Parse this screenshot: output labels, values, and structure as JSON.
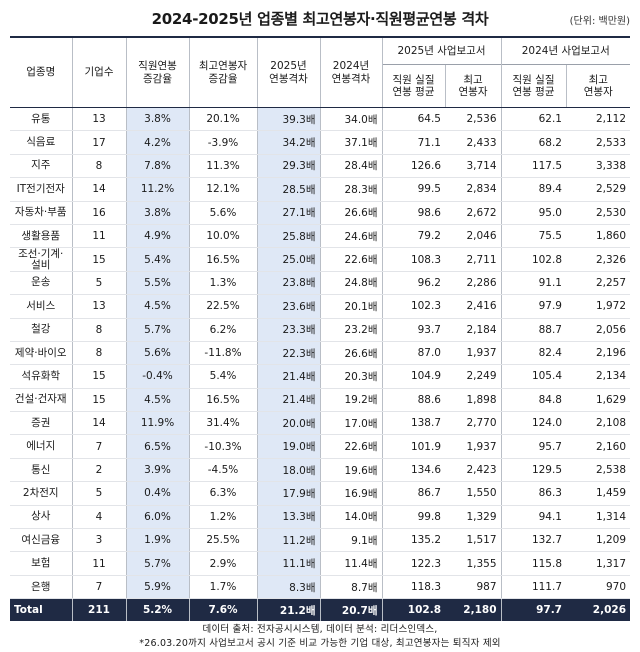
{
  "title": "2024-2025년 업종별 최고연봉자·직원평균연봉 격차",
  "unit": "(단위: 백만원)",
  "headers": {
    "industry": "업종명",
    "count": "기업수",
    "emp_growth": "직원연봉\n증감율",
    "top_growth": "최고연봉자\n증감율",
    "gap_2025": "2025년\n연봉격차",
    "gap_2024": "2024년\n연봉격차",
    "report_2025": "2025년 사업보고서",
    "report_2024": "2024년 사업보고서",
    "emp_avg": "직원 실질\n연봉 평균",
    "top_earner": "최고\n연봉자"
  },
  "rows": [
    {
      "name": "유통",
      "count": "13",
      "emp_growth": "3.8%",
      "top_growth": "20.1%",
      "gap_2025": "39.3배",
      "gap_2024": "34.0배",
      "emp_2025": "64.5",
      "top_2025": "2,536",
      "emp_2024": "62.1",
      "top_2024": "2,112"
    },
    {
      "name": "식음료",
      "count": "17",
      "emp_growth": "4.2%",
      "top_growth": "-3.9%",
      "gap_2025": "34.2배",
      "gap_2024": "37.1배",
      "emp_2025": "71.1",
      "top_2025": "2,433",
      "emp_2024": "68.2",
      "top_2024": "2,533"
    },
    {
      "name": "지주",
      "count": "8",
      "emp_growth": "7.8%",
      "top_growth": "11.3%",
      "gap_2025": "29.3배",
      "gap_2024": "28.4배",
      "emp_2025": "126.6",
      "top_2025": "3,714",
      "emp_2024": "117.5",
      "top_2024": "3,338"
    },
    {
      "name": "IT전기전자",
      "count": "14",
      "emp_growth": "11.2%",
      "top_growth": "12.1%",
      "gap_2025": "28.5배",
      "gap_2024": "28.3배",
      "emp_2025": "99.5",
      "top_2025": "2,834",
      "emp_2024": "89.4",
      "top_2024": "2,529"
    },
    {
      "name": "자동차·부품",
      "count": "16",
      "emp_growth": "3.8%",
      "top_growth": "5.6%",
      "gap_2025": "27.1배",
      "gap_2024": "26.6배",
      "emp_2025": "98.6",
      "top_2025": "2,672",
      "emp_2024": "95.0",
      "top_2024": "2,530"
    },
    {
      "name": "생활용품",
      "count": "11",
      "emp_growth": "4.9%",
      "top_growth": "10.0%",
      "gap_2025": "25.8배",
      "gap_2024": "24.6배",
      "emp_2025": "79.2",
      "top_2025": "2,046",
      "emp_2024": "75.5",
      "top_2024": "1,860"
    },
    {
      "name": "조선·기계·설비",
      "count": "15",
      "emp_growth": "5.4%",
      "top_growth": "16.5%",
      "gap_2025": "25.0배",
      "gap_2024": "22.6배",
      "emp_2025": "108.3",
      "top_2025": "2,711",
      "emp_2024": "102.8",
      "top_2024": "2,326"
    },
    {
      "name": "운송",
      "count": "5",
      "emp_growth": "5.5%",
      "top_growth": "1.3%",
      "gap_2025": "23.8배",
      "gap_2024": "24.8배",
      "emp_2025": "96.2",
      "top_2025": "2,286",
      "emp_2024": "91.1",
      "top_2024": "2,257"
    },
    {
      "name": "서비스",
      "count": "13",
      "emp_growth": "4.5%",
      "top_growth": "22.5%",
      "gap_2025": "23.6배",
      "gap_2024": "20.1배",
      "emp_2025": "102.3",
      "top_2025": "2,416",
      "emp_2024": "97.9",
      "top_2024": "1,972"
    },
    {
      "name": "철강",
      "count": "8",
      "emp_growth": "5.7%",
      "top_growth": "6.2%",
      "gap_2025": "23.3배",
      "gap_2024": "23.2배",
      "emp_2025": "93.7",
      "top_2025": "2,184",
      "emp_2024": "88.7",
      "top_2024": "2,056"
    },
    {
      "name": "제약·바이오",
      "count": "8",
      "emp_growth": "5.6%",
      "top_growth": "-11.8%",
      "gap_2025": "22.3배",
      "gap_2024": "26.6배",
      "emp_2025": "87.0",
      "top_2025": "1,937",
      "emp_2024": "82.4",
      "top_2024": "2,196"
    },
    {
      "name": "석유화학",
      "count": "15",
      "emp_growth": "-0.4%",
      "top_growth": "5.4%",
      "gap_2025": "21.4배",
      "gap_2024": "20.3배",
      "emp_2025": "104.9",
      "top_2025": "2,249",
      "emp_2024": "105.4",
      "top_2024": "2,134"
    },
    {
      "name": "건설·건자재",
      "count": "15",
      "emp_growth": "4.5%",
      "top_growth": "16.5%",
      "gap_2025": "21.4배",
      "gap_2024": "19.2배",
      "emp_2025": "88.6",
      "top_2025": "1,898",
      "emp_2024": "84.8",
      "top_2024": "1,629"
    },
    {
      "name": "증권",
      "count": "14",
      "emp_growth": "11.9%",
      "top_growth": "31.4%",
      "gap_2025": "20.0배",
      "gap_2024": "17.0배",
      "emp_2025": "138.7",
      "top_2025": "2,770",
      "emp_2024": "124.0",
      "top_2024": "2,108"
    },
    {
      "name": "에너지",
      "count": "7",
      "emp_growth": "6.5%",
      "top_growth": "-10.3%",
      "gap_2025": "19.0배",
      "gap_2024": "22.6배",
      "emp_2025": "101.9",
      "top_2025": "1,937",
      "emp_2024": "95.7",
      "top_2024": "2,160"
    },
    {
      "name": "통신",
      "count": "2",
      "emp_growth": "3.9%",
      "top_growth": "-4.5%",
      "gap_2025": "18.0배",
      "gap_2024": "19.6배",
      "emp_2025": "134.6",
      "top_2025": "2,423",
      "emp_2024": "129.5",
      "top_2024": "2,538"
    },
    {
      "name": "2차전지",
      "count": "5",
      "emp_growth": "0.4%",
      "top_growth": "6.3%",
      "gap_2025": "17.9배",
      "gap_2024": "16.9배",
      "emp_2025": "86.7",
      "top_2025": "1,550",
      "emp_2024": "86.3",
      "top_2024": "1,459"
    },
    {
      "name": "상사",
      "count": "4",
      "emp_growth": "6.0%",
      "top_growth": "1.2%",
      "gap_2025": "13.3배",
      "gap_2024": "14.0배",
      "emp_2025": "99.8",
      "top_2025": "1,329",
      "emp_2024": "94.1",
      "top_2024": "1,314"
    },
    {
      "name": "여신금융",
      "count": "3",
      "emp_growth": "1.9%",
      "top_growth": "25.5%",
      "gap_2025": "11.2배",
      "gap_2024": "9.1배",
      "emp_2025": "135.2",
      "top_2025": "1,517",
      "emp_2024": "132.7",
      "top_2024": "1,209"
    },
    {
      "name": "보험",
      "count": "11",
      "emp_growth": "5.7%",
      "top_growth": "2.9%",
      "gap_2025": "11.1배",
      "gap_2024": "11.4배",
      "emp_2025": "122.3",
      "top_2025": "1,355",
      "emp_2024": "115.8",
      "top_2024": "1,317"
    },
    {
      "name": "은행",
      "count": "7",
      "emp_growth": "5.9%",
      "top_growth": "1.7%",
      "gap_2025": "8.3배",
      "gap_2024": "8.7배",
      "emp_2025": "118.3",
      "top_2025": "987",
      "emp_2024": "111.7",
      "top_2024": "970"
    }
  ],
  "total": {
    "name": "Total",
    "count": "211",
    "emp_growth": "5.2%",
    "top_growth": "7.6%",
    "gap_2025": "21.2배",
    "gap_2024": "20.7배",
    "emp_2025": "102.8",
    "top_2025": "2,180",
    "emp_2024": "97.7",
    "top_2024": "2,026"
  },
  "notes": [
    "데이터 출처: 전자공시시스템, 데이터 분석: 리더스인덱스,",
    "*26.03.20까지 사업보고서 공시 기준 비교 가능한 기업 대상, 최고연봉자는 퇴직자 제외"
  ],
  "colors": {
    "accent_navy": "#1f2a44",
    "highlight_blue": "#dfe8f6"
  }
}
